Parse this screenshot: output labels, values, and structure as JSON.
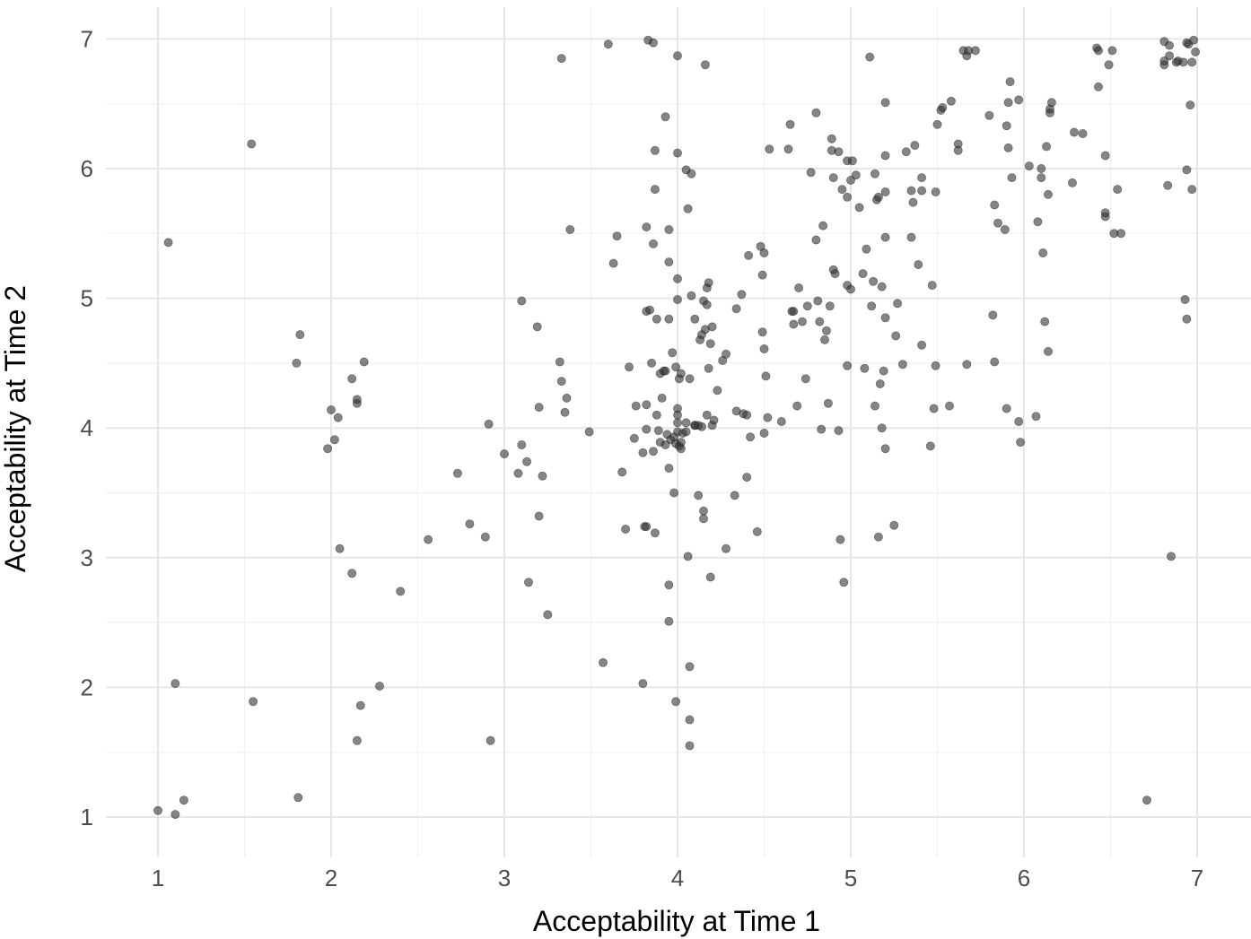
{
  "chart_data": {
    "type": "scatter",
    "title": "",
    "xlabel": "Acceptability at Time 1",
    "ylabel": "Acceptability at Time 2",
    "xlim": [
      0.78,
      7.32
    ],
    "ylim": [
      0.71,
      7.2
    ],
    "xticks": [
      1,
      2,
      3,
      4,
      5,
      6,
      7
    ],
    "yticks": [
      1,
      2,
      3,
      4,
      5,
      6,
      7
    ],
    "x_tick_labels": [
      "1",
      "2",
      "3",
      "4",
      "5",
      "6",
      "7"
    ],
    "y_tick_labels": [
      "1",
      "2",
      "3",
      "4",
      "5",
      "6",
      "7"
    ],
    "grid": true,
    "legend": "none",
    "point_color": "#333333",
    "point_opacity": 0.6,
    "points": [
      [
        1.0,
        1.05
      ],
      [
        1.1,
        1.02
      ],
      [
        1.15,
        1.13
      ],
      [
        1.1,
        2.03
      ],
      [
        1.06,
        5.43
      ],
      [
        1.54,
        6.19
      ],
      [
        1.55,
        1.89
      ],
      [
        1.8,
        4.5
      ],
      [
        1.82,
        4.72
      ],
      [
        1.81,
        1.15
      ],
      [
        1.98,
        3.84
      ],
      [
        2.0,
        4.14
      ],
      [
        2.02,
        3.91
      ],
      [
        2.04,
        4.08
      ],
      [
        2.12,
        4.38
      ],
      [
        2.15,
        4.19
      ],
      [
        2.15,
        4.22
      ],
      [
        2.19,
        4.51
      ],
      [
        2.05,
        3.07
      ],
      [
        2.12,
        2.88
      ],
      [
        2.17,
        1.86
      ],
      [
        2.15,
        1.59
      ],
      [
        2.28,
        2.01
      ],
      [
        2.4,
        2.74
      ],
      [
        2.56,
        3.14
      ],
      [
        2.73,
        3.65
      ],
      [
        2.8,
        3.26
      ],
      [
        2.89,
        3.16
      ],
      [
        2.91,
        4.03
      ],
      [
        2.92,
        1.59
      ],
      [
        3.0,
        3.8
      ],
      [
        3.08,
        3.65
      ],
      [
        3.1,
        3.87
      ],
      [
        3.1,
        4.98
      ],
      [
        3.13,
        3.74
      ],
      [
        3.14,
        2.81
      ],
      [
        3.19,
        4.78
      ],
      [
        3.2,
        4.16
      ],
      [
        3.2,
        3.32
      ],
      [
        3.22,
        3.63
      ],
      [
        3.25,
        2.56
      ],
      [
        3.32,
        4.51
      ],
      [
        3.33,
        4.36
      ],
      [
        3.33,
        6.85
      ],
      [
        3.35,
        4.12
      ],
      [
        3.36,
        4.23
      ],
      [
        3.38,
        5.53
      ],
      [
        3.49,
        3.97
      ],
      [
        3.57,
        2.19
      ],
      [
        3.6,
        6.96
      ],
      [
        3.63,
        5.27
      ],
      [
        3.65,
        5.48
      ],
      [
        3.68,
        3.66
      ],
      [
        3.7,
        3.22
      ],
      [
        3.72,
        4.47
      ],
      [
        3.75,
        3.92
      ],
      [
        3.76,
        4.17
      ],
      [
        3.8,
        2.03
      ],
      [
        3.8,
        3.81
      ],
      [
        3.81,
        3.24
      ],
      [
        3.82,
        3.24
      ],
      [
        3.82,
        3.99
      ],
      [
        3.82,
        4.9
      ],
      [
        3.82,
        4.18
      ],
      [
        3.82,
        5.55
      ],
      [
        3.83,
        6.99
      ],
      [
        3.84,
        4.91
      ],
      [
        3.85,
        4.5
      ],
      [
        3.86,
        3.82
      ],
      [
        3.86,
        5.42
      ],
      [
        3.86,
        6.97
      ],
      [
        3.87,
        6.14
      ],
      [
        3.87,
        5.84
      ],
      [
        3.87,
        3.19
      ],
      [
        3.88,
        4.1
      ],
      [
        3.88,
        4.84
      ],
      [
        3.89,
        3.98
      ],
      [
        3.9,
        3.89
      ],
      [
        3.9,
        4.42
      ],
      [
        3.91,
        4.23
      ],
      [
        3.92,
        4.44
      ],
      [
        3.93,
        3.87
      ],
      [
        3.93,
        6.4
      ],
      [
        3.93,
        4.44
      ],
      [
        3.94,
        3.95
      ],
      [
        3.95,
        2.79
      ],
      [
        3.95,
        5.28
      ],
      [
        3.95,
        5.53
      ],
      [
        3.95,
        3.69
      ],
      [
        3.95,
        4.84
      ],
      [
        3.95,
        2.51
      ],
      [
        3.96,
        3.91
      ],
      [
        3.97,
        4.58
      ],
      [
        3.98,
        3.5
      ],
      [
        3.98,
        3.93
      ],
      [
        3.99,
        3.88
      ],
      [
        3.99,
        1.89
      ],
      [
        3.99,
        4.47
      ],
      [
        4.0,
        4.04
      ],
      [
        4.0,
        3.97
      ],
      [
        4.0,
        4.15
      ],
      [
        4.0,
        4.1
      ],
      [
        4.0,
        6.87
      ],
      [
        4.0,
        5.15
      ],
      [
        4.0,
        4.99
      ],
      [
        4.0,
        6.12
      ],
      [
        4.01,
        4.38
      ],
      [
        4.01,
        3.86
      ],
      [
        4.02,
        3.89
      ],
      [
        4.02,
        4.42
      ],
      [
        4.02,
        3.84
      ],
      [
        4.03,
        3.96
      ],
      [
        4.05,
        4.04
      ],
      [
        4.05,
        3.97
      ],
      [
        4.05,
        5.99
      ],
      [
        4.06,
        5.69
      ],
      [
        4.06,
        3.01
      ],
      [
        4.07,
        4.38
      ],
      [
        4.07,
        1.75
      ],
      [
        4.07,
        1.55
      ],
      [
        4.07,
        2.16
      ],
      [
        4.08,
        5.02
      ],
      [
        4.08,
        5.96
      ],
      [
        4.1,
        4.84
      ],
      [
        4.1,
        4.02
      ],
      [
        4.1,
        4.02
      ],
      [
        4.12,
        4.02
      ],
      [
        4.12,
        3.48
      ],
      [
        4.13,
        4.68
      ],
      [
        4.14,
        4.72
      ],
      [
        4.14,
        4.01
      ],
      [
        4.15,
        3.36
      ],
      [
        4.15,
        3.3
      ],
      [
        4.15,
        4.98
      ],
      [
        4.16,
        6.8
      ],
      [
        4.16,
        4.76
      ],
      [
        4.17,
        5.08
      ],
      [
        4.17,
        4.95
      ],
      [
        4.17,
        4.1
      ],
      [
        4.18,
        4.46
      ],
      [
        4.18,
        5.12
      ],
      [
        4.19,
        4.65
      ],
      [
        4.19,
        2.85
      ],
      [
        4.2,
        4.02
      ],
      [
        4.2,
        4.78
      ],
      [
        4.21,
        4.06
      ],
      [
        4.23,
        4.29
      ],
      [
        4.26,
        4.52
      ],
      [
        4.28,
        4.57
      ],
      [
        4.28,
        3.07
      ],
      [
        4.33,
        3.48
      ],
      [
        4.34,
        4.13
      ],
      [
        4.34,
        4.92
      ],
      [
        4.37,
        5.03
      ],
      [
        4.38,
        4.11
      ],
      [
        4.4,
        4.1
      ],
      [
        4.4,
        3.62
      ],
      [
        4.41,
        5.33
      ],
      [
        4.42,
        3.93
      ],
      [
        4.46,
        3.2
      ],
      [
        4.48,
        5.4
      ],
      [
        4.49,
        4.74
      ],
      [
        4.49,
        5.18
      ],
      [
        4.5,
        3.96
      ],
      [
        4.5,
        4.61
      ],
      [
        4.5,
        5.35
      ],
      [
        4.51,
        4.4
      ],
      [
        4.52,
        4.08
      ],
      [
        4.53,
        6.15
      ],
      [
        4.6,
        4.05
      ],
      [
        4.64,
        6.15
      ],
      [
        4.65,
        6.34
      ],
      [
        4.66,
        4.9
      ],
      [
        4.67,
        4.8
      ],
      [
        4.67,
        4.9
      ],
      [
        4.69,
        4.17
      ],
      [
        4.7,
        5.08
      ],
      [
        4.72,
        4.82
      ],
      [
        4.74,
        4.38
      ],
      [
        4.75,
        4.94
      ],
      [
        4.77,
        5.97
      ],
      [
        4.8,
        5.45
      ],
      [
        4.8,
        6.43
      ],
      [
        4.81,
        4.98
      ],
      [
        4.82,
        4.82
      ],
      [
        4.83,
        3.99
      ],
      [
        4.84,
        5.56
      ],
      [
        4.85,
        4.68
      ],
      [
        4.86,
        4.75
      ],
      [
        4.87,
        4.19
      ],
      [
        4.88,
        4.94
      ],
      [
        4.89,
        6.23
      ],
      [
        4.89,
        6.14
      ],
      [
        4.9,
        5.22
      ],
      [
        4.9,
        5.93
      ],
      [
        4.91,
        5.19
      ],
      [
        4.93,
        3.98
      ],
      [
        4.93,
        6.13
      ],
      [
        4.94,
        3.14
      ],
      [
        4.95,
        5.84
      ],
      [
        4.96,
        2.81
      ],
      [
        4.98,
        6.06
      ],
      [
        4.98,
        5.1
      ],
      [
        4.98,
        4.48
      ],
      [
        4.98,
        5.78
      ],
      [
        5.0,
        5.07
      ],
      [
        5.0,
        5.91
      ],
      [
        5.01,
        6.06
      ],
      [
        5.03,
        5.95
      ],
      [
        5.05,
        5.7
      ],
      [
        5.07,
        5.19
      ],
      [
        5.08,
        4.46
      ],
      [
        5.09,
        5.38
      ],
      [
        5.11,
        6.86
      ],
      [
        5.12,
        4.94
      ],
      [
        5.13,
        5.13
      ],
      [
        5.14,
        5.96
      ],
      [
        5.14,
        4.17
      ],
      [
        5.15,
        5.76
      ],
      [
        5.16,
        3.16
      ],
      [
        5.16,
        5.78
      ],
      [
        5.17,
        4.34
      ],
      [
        5.18,
        5.09
      ],
      [
        5.18,
        4.0
      ],
      [
        5.19,
        4.44
      ],
      [
        5.2,
        4.85
      ],
      [
        5.2,
        3.84
      ],
      [
        5.2,
        5.47
      ],
      [
        5.2,
        5.82
      ],
      [
        5.2,
        6.51
      ],
      [
        5.2,
        6.1
      ],
      [
        5.25,
        3.25
      ],
      [
        5.26,
        4.71
      ],
      [
        5.27,
        4.96
      ],
      [
        5.3,
        4.49
      ],
      [
        5.32,
        6.13
      ],
      [
        5.35,
        5.47
      ],
      [
        5.35,
        5.83
      ],
      [
        5.36,
        5.74
      ],
      [
        5.37,
        6.18
      ],
      [
        5.39,
        5.26
      ],
      [
        5.41,
        5.93
      ],
      [
        5.41,
        4.64
      ],
      [
        5.41,
        5.83
      ],
      [
        5.46,
        3.86
      ],
      [
        5.47,
        5.1
      ],
      [
        5.48,
        4.15
      ],
      [
        5.49,
        4.48
      ],
      [
        5.49,
        5.82
      ],
      [
        5.5,
        6.34
      ],
      [
        5.52,
        6.45
      ],
      [
        5.53,
        6.47
      ],
      [
        5.57,
        4.17
      ],
      [
        5.58,
        6.52
      ],
      [
        5.62,
        6.19
      ],
      [
        5.62,
        6.14
      ],
      [
        5.65,
        6.91
      ],
      [
        5.67,
        6.87
      ],
      [
        5.67,
        4.49
      ],
      [
        5.68,
        6.91
      ],
      [
        5.72,
        6.91
      ],
      [
        5.8,
        6.41
      ],
      [
        5.82,
        4.87
      ],
      [
        5.83,
        5.72
      ],
      [
        5.83,
        4.51
      ],
      [
        5.85,
        5.58
      ],
      [
        5.89,
        5.53
      ],
      [
        5.9,
        6.33
      ],
      [
        5.9,
        4.15
      ],
      [
        5.91,
        6.51
      ],
      [
        5.91,
        6.16
      ],
      [
        5.92,
        6.67
      ],
      [
        5.93,
        5.93
      ],
      [
        5.97,
        6.53
      ],
      [
        5.97,
        4.05
      ],
      [
        5.98,
        3.89
      ],
      [
        6.03,
        6.02
      ],
      [
        6.07,
        4.09
      ],
      [
        6.08,
        5.59
      ],
      [
        6.1,
        6.0
      ],
      [
        6.1,
        5.93
      ],
      [
        6.11,
        5.35
      ],
      [
        6.12,
        4.82
      ],
      [
        6.13,
        6.17
      ],
      [
        6.14,
        4.59
      ],
      [
        6.14,
        5.8
      ],
      [
        6.15,
        6.43
      ],
      [
        6.15,
        6.46
      ],
      [
        6.16,
        6.51
      ],
      [
        6.28,
        5.89
      ],
      [
        6.29,
        6.28
      ],
      [
        6.34,
        6.27
      ],
      [
        6.42,
        6.93
      ],
      [
        6.43,
        6.63
      ],
      [
        6.43,
        6.91
      ],
      [
        6.47,
        5.63
      ],
      [
        6.47,
        5.66
      ],
      [
        6.47,
        6.1
      ],
      [
        6.49,
        6.8
      ],
      [
        6.51,
        6.91
      ],
      [
        6.52,
        5.5
      ],
      [
        6.54,
        5.84
      ],
      [
        6.56,
        5.5
      ],
      [
        6.71,
        1.13
      ],
      [
        6.81,
        6.98
      ],
      [
        6.81,
        6.8
      ],
      [
        6.81,
        6.83
      ],
      [
        6.83,
        5.87
      ],
      [
        6.84,
        6.95
      ],
      [
        6.84,
        6.87
      ],
      [
        6.85,
        3.01
      ],
      [
        6.88,
        6.82
      ],
      [
        6.89,
        6.83
      ],
      [
        6.92,
        6.82
      ],
      [
        6.93,
        4.99
      ],
      [
        6.94,
        5.99
      ],
      [
        6.94,
        4.84
      ],
      [
        6.94,
        6.97
      ],
      [
        6.95,
        6.96
      ],
      [
        6.96,
        6.49
      ],
      [
        6.97,
        6.82
      ],
      [
        6.97,
        5.84
      ],
      [
        6.98,
        6.99
      ],
      [
        6.99,
        6.9
      ]
    ]
  }
}
